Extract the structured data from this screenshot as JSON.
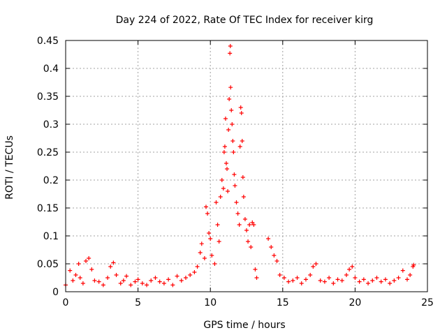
{
  "chart_data": {
    "type": "scatter",
    "title": "Day 224 of 2022, Rate Of TEC Index for receiver kirg",
    "xlabel": "GPS time / hours",
    "ylabel": "ROTI / TECUs",
    "xlim": [
      0,
      25
    ],
    "ylim": [
      0,
      0.45
    ],
    "xticks": [
      0,
      5,
      10,
      15,
      20,
      25
    ],
    "xtick_labels": [
      "0",
      "5",
      "10",
      "15",
      "20",
      "25"
    ],
    "yticks": [
      0,
      0.05,
      0.1,
      0.15,
      0.2,
      0.25,
      0.3,
      0.35,
      0.4,
      0.45
    ],
    "ytick_labels": [
      "0",
      "0.05",
      "0.1",
      "0.15",
      "0.2",
      "0.25",
      "0.3",
      "0.35",
      "0.4",
      "0.45"
    ],
    "grid": true,
    "marker": "+",
    "series": [
      {
        "name": "ROTI",
        "color": "#ff0000",
        "points": [
          [
            0.0,
            0.012
          ],
          [
            0.3,
            0.038
          ],
          [
            0.5,
            0.02
          ],
          [
            0.7,
            0.03
          ],
          [
            0.9,
            0.05
          ],
          [
            1.0,
            0.025
          ],
          [
            1.2,
            0.015
          ],
          [
            1.4,
            0.055
          ],
          [
            1.6,
            0.06
          ],
          [
            1.8,
            0.04
          ],
          [
            2.0,
            0.02
          ],
          [
            2.3,
            0.018
          ],
          [
            2.6,
            0.012
          ],
          [
            2.9,
            0.025
          ],
          [
            3.1,
            0.045
          ],
          [
            3.3,
            0.052
          ],
          [
            3.5,
            0.03
          ],
          [
            3.8,
            0.015
          ],
          [
            4.0,
            0.02
          ],
          [
            4.2,
            0.028
          ],
          [
            4.5,
            0.012
          ],
          [
            4.8,
            0.018
          ],
          [
            5.0,
            0.022
          ],
          [
            5.3,
            0.015
          ],
          [
            5.6,
            0.012
          ],
          [
            5.9,
            0.02
          ],
          [
            6.2,
            0.025
          ],
          [
            6.5,
            0.018
          ],
          [
            6.8,
            0.015
          ],
          [
            7.1,
            0.022
          ],
          [
            7.4,
            0.012
          ],
          [
            7.7,
            0.028
          ],
          [
            8.0,
            0.02
          ],
          [
            8.3,
            0.025
          ],
          [
            8.6,
            0.03
          ],
          [
            8.9,
            0.035
          ],
          [
            9.1,
            0.045
          ],
          [
            9.3,
            0.07
          ],
          [
            9.4,
            0.086
          ],
          [
            9.6,
            0.06
          ],
          [
            9.7,
            0.152
          ],
          [
            9.8,
            0.14
          ],
          [
            9.9,
            0.105
          ],
          [
            10.0,
            0.095
          ],
          [
            10.1,
            0.065
          ],
          [
            10.3,
            0.05
          ],
          [
            10.4,
            0.16
          ],
          [
            10.5,
            0.12
          ],
          [
            10.6,
            0.09
          ],
          [
            10.7,
            0.17
          ],
          [
            10.8,
            0.2
          ],
          [
            10.9,
            0.185
          ],
          [
            10.95,
            0.25
          ],
          [
            11.0,
            0.26
          ],
          [
            11.05,
            0.31
          ],
          [
            11.1,
            0.23
          ],
          [
            11.15,
            0.22
          ],
          [
            11.2,
            0.18
          ],
          [
            11.25,
            0.29
          ],
          [
            11.3,
            0.345
          ],
          [
            11.35,
            0.427
          ],
          [
            11.38,
            0.44
          ],
          [
            11.4,
            0.366
          ],
          [
            11.45,
            0.325
          ],
          [
            11.5,
            0.3
          ],
          [
            11.55,
            0.27
          ],
          [
            11.6,
            0.25
          ],
          [
            11.65,
            0.21
          ],
          [
            11.7,
            0.19
          ],
          [
            11.8,
            0.16
          ],
          [
            11.9,
            0.14
          ],
          [
            12.0,
            0.12
          ],
          [
            12.05,
            0.26
          ],
          [
            12.1,
            0.33
          ],
          [
            12.15,
            0.32
          ],
          [
            12.2,
            0.27
          ],
          [
            12.25,
            0.205
          ],
          [
            12.3,
            0.17
          ],
          [
            12.4,
            0.13
          ],
          [
            12.5,
            0.11
          ],
          [
            12.6,
            0.09
          ],
          [
            12.7,
            0.12
          ],
          [
            12.8,
            0.08
          ],
          [
            12.9,
            0.124
          ],
          [
            13.0,
            0.12
          ],
          [
            13.1,
            0.04
          ],
          [
            13.2,
            0.025
          ],
          [
            14.0,
            0.095
          ],
          [
            14.2,
            0.08
          ],
          [
            14.4,
            0.065
          ],
          [
            14.6,
            0.055
          ],
          [
            14.8,
            0.03
          ],
          [
            15.1,
            0.025
          ],
          [
            15.4,
            0.018
          ],
          [
            15.7,
            0.02
          ],
          [
            16.0,
            0.025
          ],
          [
            16.3,
            0.015
          ],
          [
            16.6,
            0.022
          ],
          [
            16.9,
            0.03
          ],
          [
            17.1,
            0.045
          ],
          [
            17.3,
            0.05
          ],
          [
            17.6,
            0.02
          ],
          [
            17.9,
            0.018
          ],
          [
            18.2,
            0.025
          ],
          [
            18.5,
            0.015
          ],
          [
            18.8,
            0.022
          ],
          [
            19.1,
            0.02
          ],
          [
            19.4,
            0.03
          ],
          [
            19.6,
            0.04
          ],
          [
            19.8,
            0.045
          ],
          [
            20.0,
            0.025
          ],
          [
            20.3,
            0.018
          ],
          [
            20.6,
            0.022
          ],
          [
            20.9,
            0.015
          ],
          [
            21.2,
            0.02
          ],
          [
            21.5,
            0.025
          ],
          [
            21.8,
            0.018
          ],
          [
            22.1,
            0.022
          ],
          [
            22.4,
            0.015
          ],
          [
            22.7,
            0.02
          ],
          [
            23.0,
            0.025
          ],
          [
            23.3,
            0.038
          ],
          [
            23.6,
            0.022
          ],
          [
            23.8,
            0.03
          ],
          [
            24.0,
            0.045
          ],
          [
            24.05,
            0.048
          ]
        ]
      }
    ]
  }
}
